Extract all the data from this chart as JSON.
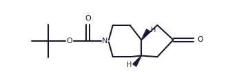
{
  "bg_color": "#ffffff",
  "line_color": "#1a1a2e",
  "lw": 1.5,
  "fs": 8,
  "xlim": [
    0,
    10
  ],
  "ylim": [
    0,
    3.6
  ],
  "figw": 3.31,
  "figh": 1.2,
  "dpi": 100
}
